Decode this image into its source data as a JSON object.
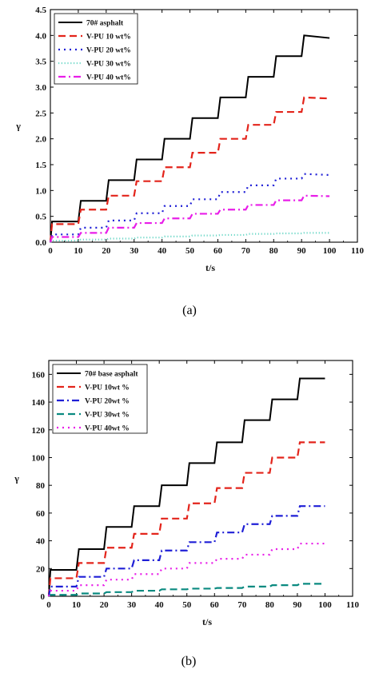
{
  "chart_data": [
    {
      "type": "line",
      "panel_caption": "(a)",
      "xlabel": "t/s",
      "ylabel": "γ",
      "xlim": [
        0,
        110
      ],
      "ylim": [
        0,
        4.5
      ],
      "xticks": [
        0,
        10,
        20,
        30,
        40,
        50,
        60,
        70,
        80,
        90,
        100,
        110
      ],
      "yticks": [
        "0.0",
        "0.5",
        "1.0",
        "1.5",
        "2.0",
        "2.5",
        "3.0",
        "3.5",
        "4.0",
        "4.5"
      ],
      "grid": false,
      "legend_position": "top-left",
      "x": [
        0,
        10,
        20,
        30,
        40,
        50,
        60,
        70,
        80,
        90,
        100
      ],
      "series": [
        {
          "name": "70# asphalt",
          "color": "#000000",
          "dash": "solid",
          "step_levels": [
            0.4,
            0.8,
            1.2,
            1.6,
            2.0,
            2.4,
            2.8,
            3.2,
            3.6,
            4.0
          ],
          "end_value": 3.95
        },
        {
          "name": "V-PU 10 wt%",
          "color": "#e3241b",
          "dash": "dash",
          "step_levels": [
            0.35,
            0.63,
            0.9,
            1.18,
            1.45,
            1.73,
            2.0,
            2.27,
            2.52,
            2.8
          ],
          "end_value": 2.78
        },
        {
          "name": "V-PU 20 wt%",
          "color": "#1f1fd6",
          "dash": "dot",
          "step_levels": [
            0.15,
            0.28,
            0.42,
            0.56,
            0.7,
            0.83,
            0.97,
            1.1,
            1.23,
            1.32
          ],
          "end_value": 1.3
        },
        {
          "name": "V-PU 30 wt%",
          "color": "#6fd8c8",
          "dash": "finedot",
          "step_levels": [
            0.03,
            0.05,
            0.07,
            0.09,
            0.11,
            0.13,
            0.14,
            0.16,
            0.17,
            0.18
          ],
          "end_value": 0.18
        },
        {
          "name": "V-PU 40 wt%",
          "color": "#e81ee8",
          "dash": "dashdot",
          "step_levels": [
            0.1,
            0.18,
            0.28,
            0.37,
            0.46,
            0.55,
            0.63,
            0.72,
            0.81,
            0.9
          ],
          "end_value": 0.89
        }
      ]
    },
    {
      "type": "line",
      "panel_caption": "(b)",
      "xlabel": "t/s",
      "ylabel": "γ",
      "xlim": [
        0,
        110
      ],
      "ylim": [
        0,
        170
      ],
      "xticks": [
        0,
        10,
        20,
        30,
        40,
        50,
        60,
        70,
        80,
        90,
        100,
        110
      ],
      "yticks": [
        "0",
        "20",
        "40",
        "60",
        "80",
        "100",
        "120",
        "140",
        "160"
      ],
      "grid": false,
      "legend_position": "top-left",
      "x": [
        0,
        10,
        20,
        30,
        40,
        50,
        60,
        70,
        80,
        90,
        100
      ],
      "series": [
        {
          "name": "70# base asphalt",
          "color": "#000000",
          "dash": "solid",
          "step_levels": [
            19,
            34,
            50,
            65,
            80,
            96,
            111,
            127,
            142,
            157
          ],
          "end_value": 157
        },
        {
          "name": "V-PU 10wt %",
          "color": "#e3241b",
          "dash": "dash",
          "step_levels": [
            13,
            24,
            35,
            45,
            56,
            67,
            78,
            89,
            100,
            111
          ],
          "end_value": 111
        },
        {
          "name": "V-PU 20wt %",
          "color": "#1f1fd6",
          "dash": "dashdot",
          "step_levels": [
            7,
            14,
            20,
            26,
            33,
            39,
            46,
            52,
            58,
            65
          ],
          "end_value": 65
        },
        {
          "name": "V-PU 30wt %",
          "color": "#0a8a80",
          "dash": "dash",
          "step_levels": [
            1,
            2,
            3,
            4,
            5,
            5.5,
            6,
            7,
            8,
            9
          ],
          "end_value": 9
        },
        {
          "name": "V-PU 40wt %",
          "color": "#e81ee8",
          "dash": "dot",
          "step_levels": [
            4,
            8,
            12,
            16,
            20,
            24,
            27,
            30,
            34,
            38
          ],
          "end_value": 38
        }
      ]
    }
  ]
}
